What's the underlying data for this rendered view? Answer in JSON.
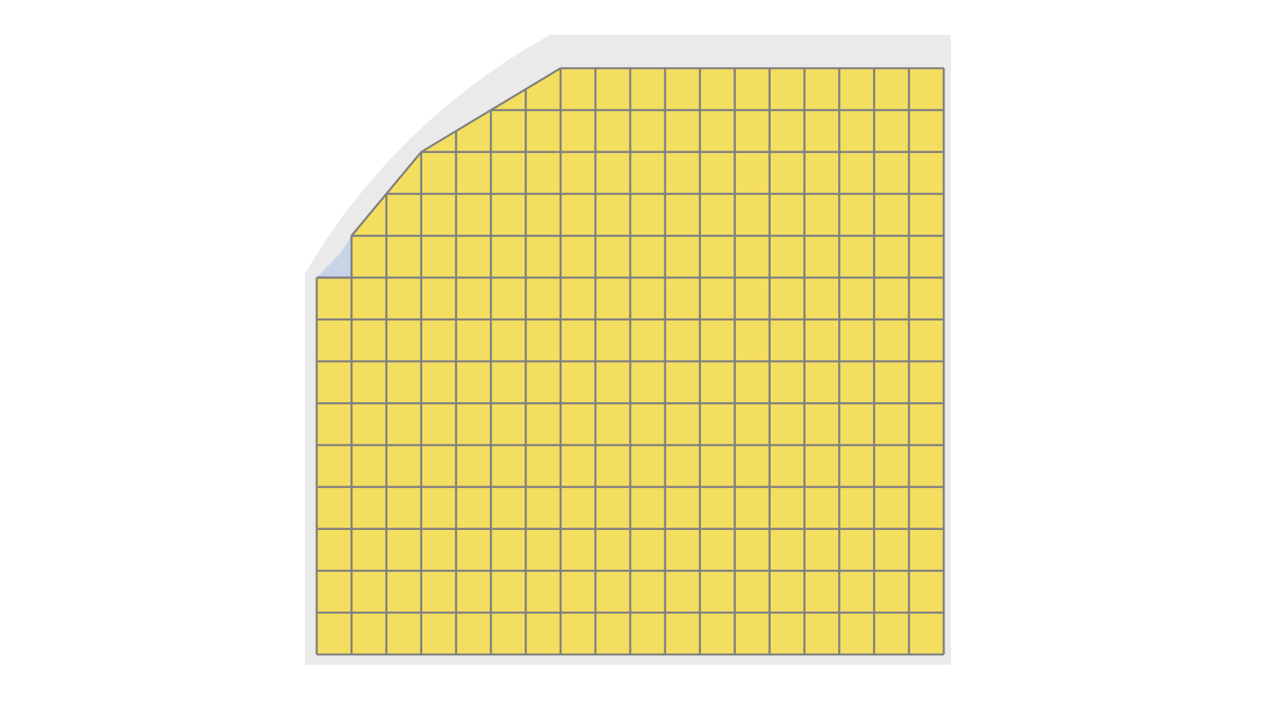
{
  "diagram": {
    "grid_columns": 18,
    "grid_rows": 14,
    "boundary_polyline_cells": [
      [
        0,
        9
      ],
      [
        1,
        9
      ],
      [
        1,
        10
      ],
      [
        3,
        12
      ],
      [
        5,
        13
      ],
      [
        7,
        14
      ]
    ],
    "colors": {
      "cell_fill": "#F4DE60",
      "grid_stroke": "#808080",
      "curve_region_fill": "#C8D3E8",
      "shadow": "#EAEAEA",
      "background": "#FFFFFF"
    }
  }
}
